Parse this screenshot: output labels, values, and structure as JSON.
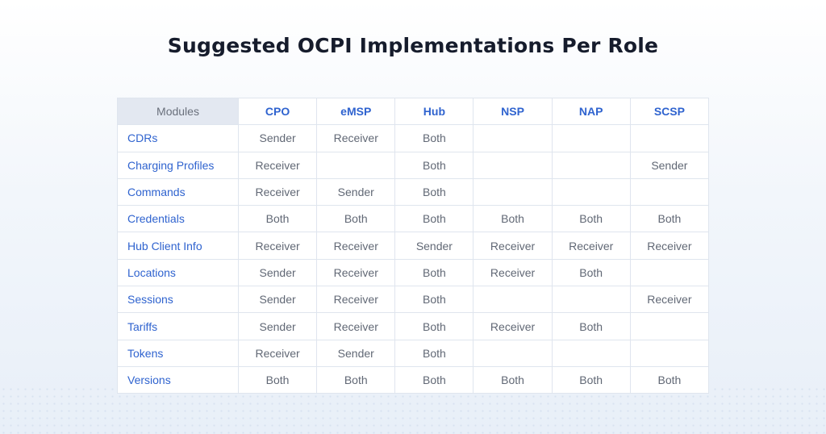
{
  "title": "Suggested OCPI Implementations Per Role",
  "table": {
    "columns": [
      "Modules",
      "CPO",
      "eMSP",
      "Hub",
      "NSP",
      "NAP",
      "SCSP"
    ],
    "rows": [
      {
        "module": "CDRs",
        "cells": [
          "Sender",
          "Receiver",
          "Both",
          "",
          "",
          ""
        ]
      },
      {
        "module": "Charging Profiles",
        "cells": [
          "Receiver",
          "",
          "Both",
          "",
          "",
          "Sender"
        ]
      },
      {
        "module": "Commands",
        "cells": [
          "Receiver",
          "Sender",
          "Both",
          "",
          "",
          ""
        ]
      },
      {
        "module": "Credentials",
        "cells": [
          "Both",
          "Both",
          "Both",
          "Both",
          "Both",
          "Both"
        ]
      },
      {
        "module": "Hub Client Info",
        "cells": [
          "Receiver",
          "Receiver",
          "Sender",
          "Receiver",
          "Receiver",
          "Receiver"
        ]
      },
      {
        "module": "Locations",
        "cells": [
          "Sender",
          "Receiver",
          "Both",
          "Receiver",
          "Both",
          ""
        ]
      },
      {
        "module": "Sessions",
        "cells": [
          "Sender",
          "Receiver",
          "Both",
          "",
          "",
          "Receiver"
        ]
      },
      {
        "module": "Tariffs",
        "cells": [
          "Sender",
          "Receiver",
          "Both",
          "Receiver",
          "Both",
          ""
        ]
      },
      {
        "module": "Tokens",
        "cells": [
          "Receiver",
          "Sender",
          "Both",
          "",
          "",
          ""
        ]
      },
      {
        "module": "Versions",
        "cells": [
          "Both",
          "Both",
          "Both",
          "Both",
          "Both",
          "Both"
        ]
      }
    ]
  },
  "colors": {
    "title": "#161c2c",
    "accent": "#2f63cf",
    "cell_text": "#616875",
    "header_bg": "#e3e8f1",
    "border": "#dfe5ee"
  }
}
